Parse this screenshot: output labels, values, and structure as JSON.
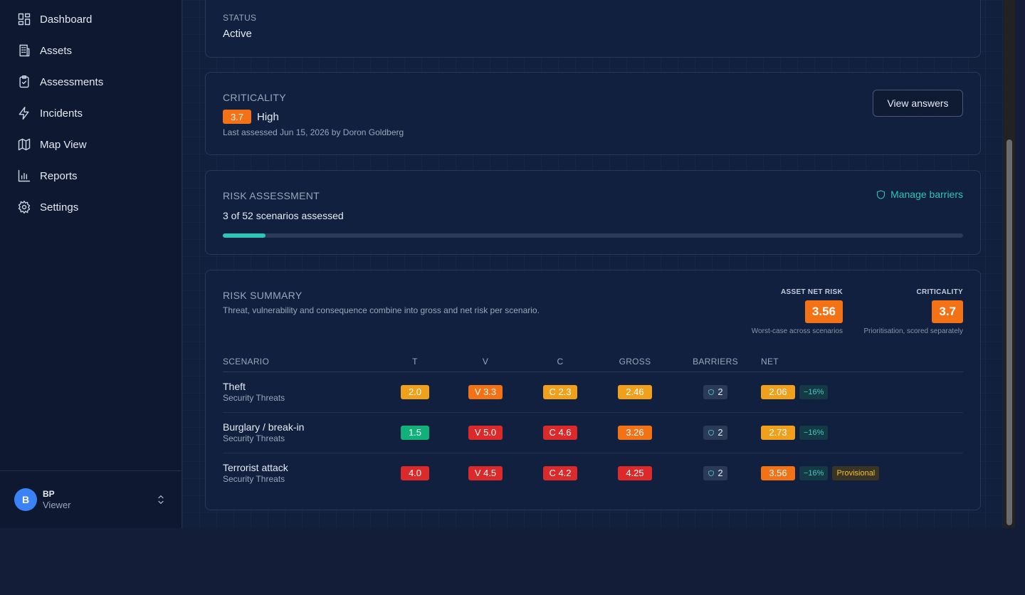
{
  "nav": [
    {
      "label": "Dashboard",
      "icon": "dashboard-icon"
    },
    {
      "label": "Assets",
      "icon": "building-icon"
    },
    {
      "label": "Assessments",
      "icon": "clipboard-check-icon"
    },
    {
      "label": "Incidents",
      "icon": "lightning-icon"
    },
    {
      "label": "Map View",
      "icon": "map-icon"
    },
    {
      "label": "Reports",
      "icon": "bar-chart-icon"
    },
    {
      "label": "Settings",
      "icon": "gear-icon"
    }
  ],
  "user": {
    "initial": "B",
    "name": "BP",
    "role": "Viewer"
  },
  "status": {
    "label": "STATUS",
    "value": "Active"
  },
  "criticality": {
    "label": "CRITICALITY",
    "score": "3.7",
    "level": "High",
    "last_assessed": "Last assessed Jun 15, 2026 by Doron Goldberg",
    "button": "View answers"
  },
  "risk_assessment": {
    "label": "RISK ASSESSMENT",
    "manage_link": "Manage barriers",
    "progress_text": "3 of 52 scenarios assessed",
    "assessed": 3,
    "total": 52
  },
  "risk_summary": {
    "label": "RISK SUMMARY",
    "description": "Threat, vulnerability and consequence combine into gross and net risk per scenario.",
    "asset_net_risk": {
      "label": "ASSET NET RISK",
      "value": "3.56",
      "note": "Worst-case across scenarios"
    },
    "criticality": {
      "label": "CRITICALITY",
      "value": "3.7",
      "note": "Prioritisation, scored separately"
    },
    "columns": [
      "SCENARIO",
      "T",
      "V",
      "C",
      "GROSS",
      "BARRIERS",
      "NET"
    ],
    "rows": [
      {
        "name": "Theft",
        "category": "Security Threats",
        "t": "2.0",
        "v": "V 3.3",
        "c": "C 2.3",
        "gross": "2.46",
        "barriers": "2",
        "net": "2.06",
        "reduction": "−16%",
        "flag": ""
      },
      {
        "name": "Burglary / break-in",
        "category": "Security Threats",
        "t": "1.5",
        "v": "V 5.0",
        "c": "C 4.6",
        "gross": "3.26",
        "barriers": "2",
        "net": "2.73",
        "reduction": "−16%",
        "flag": ""
      },
      {
        "name": "Terrorist attack",
        "category": "Security Threats",
        "t": "4.0",
        "v": "V 4.5",
        "c": "C 4.2",
        "gross": "4.25",
        "barriers": "2",
        "net": "3.56",
        "reduction": "−16%",
        "flag": "Provisional"
      }
    ]
  },
  "colors": {
    "accent": "#2ec4b6",
    "orange": "#f47216",
    "amber": "#f0a01a",
    "red": "#dc2a2a",
    "green": "#10b27a"
  }
}
